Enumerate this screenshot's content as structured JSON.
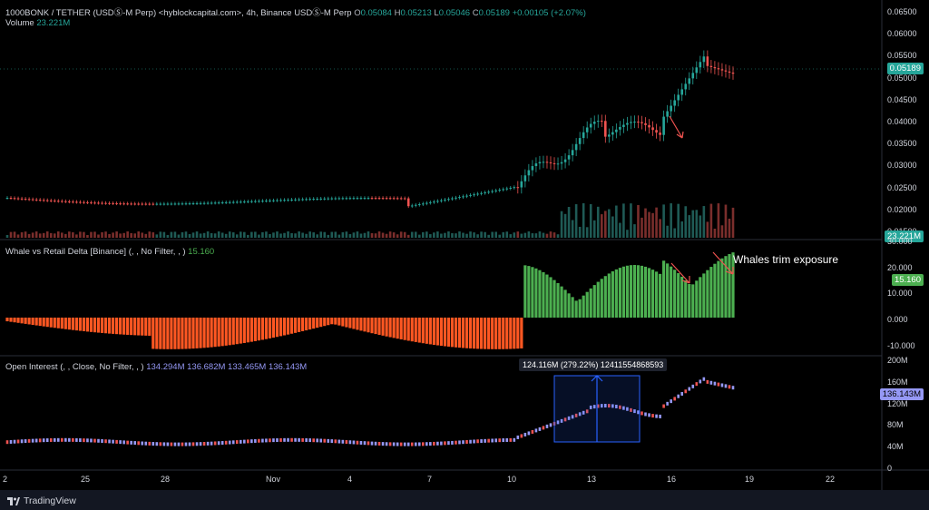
{
  "header": {
    "symbol": "1000BONK / TETHER (USDⓈ-M Perp) <hyblockcapital.com>, 4h, Binance USDⓈ-M Perp",
    "o_label": "O",
    "o_val": "0.05084",
    "h_label": "H",
    "h_val": "0.05213",
    "l_label": "L",
    "l_val": "0.05046",
    "c_label": "C",
    "c_val": "0.05189",
    "change": "+0.00105 (+2.07%)",
    "volume_label": "Volume",
    "volume_val": "23.221M"
  },
  "price_axis": {
    "ticks": [
      "0.06500",
      "0.06000",
      "0.05500",
      "0.05000",
      "0.04500",
      "0.04000",
      "0.03500",
      "0.03000",
      "0.02500",
      "0.02000",
      "0.01500"
    ],
    "last_price": "0.05189",
    "last_volume": "23.221M"
  },
  "delta_panel": {
    "title": "Whale vs Retail Delta [Binance] (, , No Filter, , )",
    "value": "15.160",
    "ticks": [
      "30.000",
      "20.000",
      "10.000",
      "0.000",
      "-10.000"
    ],
    "annotation": "Whales trim exposure"
  },
  "oi_panel": {
    "title": "Open Interest (, , Close, No Filter, , )",
    "v1": "134.294M",
    "v2": "136.682M",
    "v3": "133.465M",
    "v4": "136.143M",
    "ticks": [
      "200M",
      "160M",
      "120M",
      "80M",
      "40M",
      "0"
    ],
    "last": "136.143M",
    "measure": "124.116M (279.22%) 12411554868593"
  },
  "time_axis": [
    "2",
    "25",
    "28",
    "Nov",
    "4",
    "7",
    "10",
    "13",
    "16",
    "19",
    "22"
  ],
  "footer": {
    "brand": "TradingView"
  },
  "colors": {
    "up": "#26a69a",
    "down": "#ef5350",
    "delta_pos": "#4caf50",
    "delta_neg": "#ff5722",
    "oi": "#9598f5"
  }
}
